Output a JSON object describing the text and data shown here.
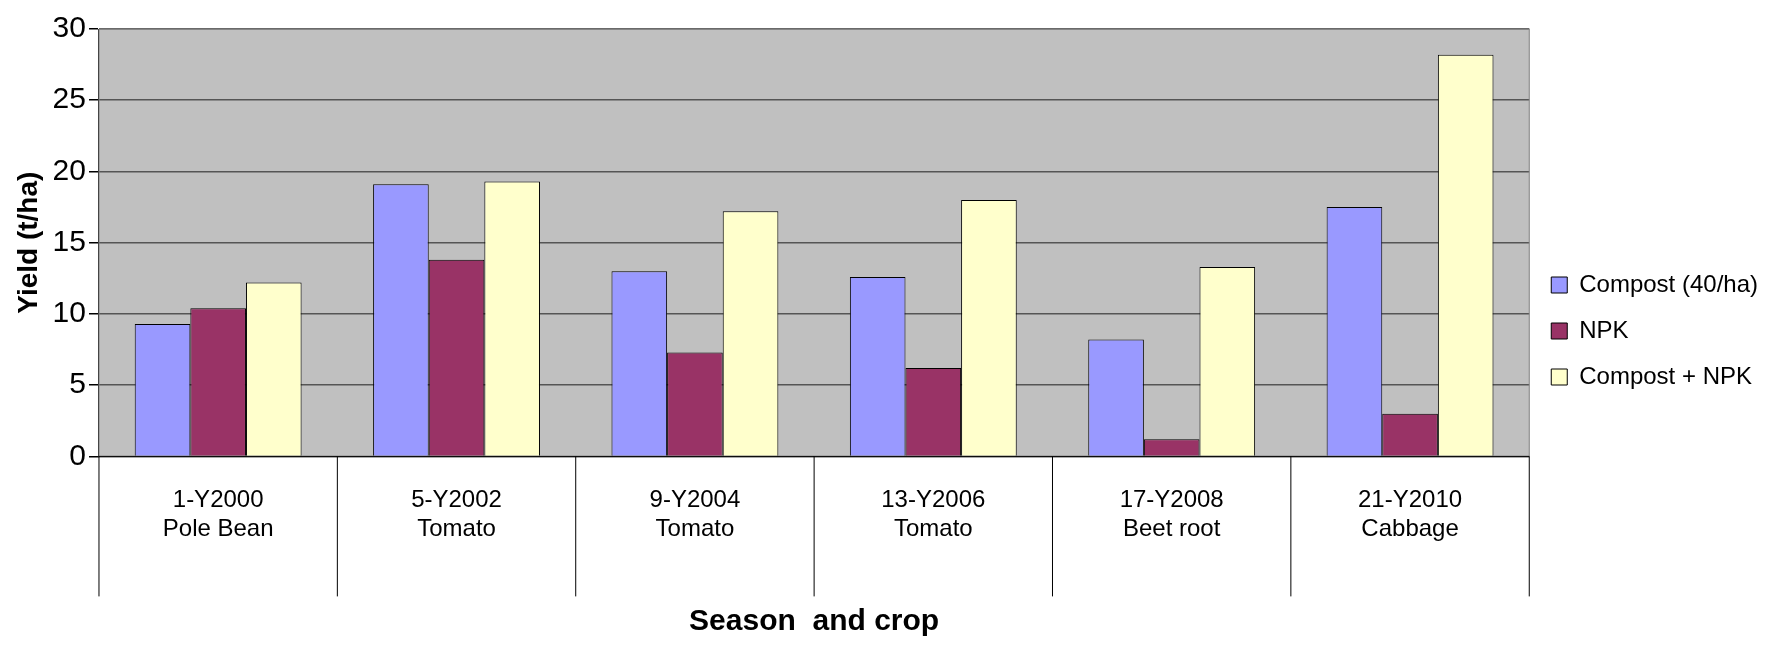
{
  "chart_data": {
    "type": "bar",
    "xlabel": "Season  and crop",
    "ylabel": "Yield (t/ha)",
    "categories": [
      "1-Y2000\nPole Bean",
      "5-Y2002\nTomato",
      "9-Y2004\nTomato",
      "13-Y2006\nTomato",
      "17-Y2008\nBeet root",
      "21-Y2010\nCabbage"
    ],
    "series": [
      {
        "name": "Compost (40/ha)",
        "color": "#9999ff",
        "values": [
          9.3,
          19.1,
          13.0,
          12.6,
          8.2,
          17.5
        ]
      },
      {
        "name": "NPK",
        "color": "#993366",
        "values": [
          10.4,
          13.8,
          7.3,
          6.2,
          1.2,
          3.0
        ]
      },
      {
        "name": "Compost + NPK",
        "color": "#ffffcc",
        "values": [
          12.2,
          19.3,
          17.2,
          18.0,
          13.3,
          28.2
        ]
      }
    ],
    "ylim": [
      0,
      30
    ],
    "yticks": [
      0,
      5,
      10,
      15,
      20,
      25,
      30
    ],
    "grid": "y",
    "legend": "right"
  }
}
